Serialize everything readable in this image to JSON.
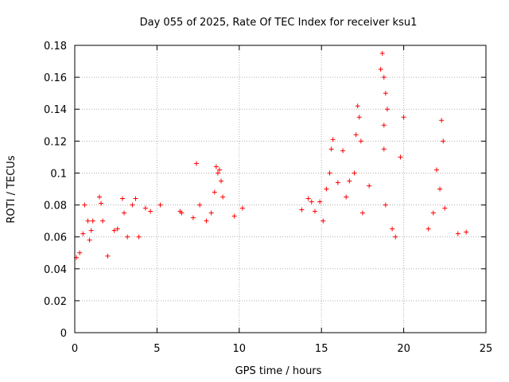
{
  "chart_data": {
    "type": "scatter",
    "title": "Day 055 of 2025, Rate Of TEC Index for receiver ksu1",
    "xlabel": "GPS time / hours",
    "ylabel": "ROTI / TECUs",
    "xlim": [
      0,
      25
    ],
    "ylim": [
      0,
      0.18
    ],
    "xticks": [
      0,
      5,
      10,
      15,
      20,
      25
    ],
    "xtick_labels": [
      "0",
      "5",
      "10",
      "15",
      "20",
      "25"
    ],
    "yticks": [
      0,
      0.02,
      0.04,
      0.06,
      0.08,
      0.1,
      0.12,
      0.14,
      0.16,
      0.18
    ],
    "ytick_labels": [
      "0",
      "0.02",
      "0.04",
      "0.06",
      "0.08",
      "0.1",
      "0.12",
      "0.14",
      "0.16",
      "0.18"
    ],
    "grid": true,
    "marker": "+",
    "color": "#ff0000",
    "series": [
      {
        "name": "ROTI",
        "points": [
          [
            0.1,
            0.047
          ],
          [
            0.3,
            0.05
          ],
          [
            0.5,
            0.062
          ],
          [
            0.6,
            0.08
          ],
          [
            0.8,
            0.07
          ],
          [
            0.9,
            0.058
          ],
          [
            1.0,
            0.064
          ],
          [
            1.1,
            0.07
          ],
          [
            1.5,
            0.085
          ],
          [
            1.6,
            0.081
          ],
          [
            1.7,
            0.07
          ],
          [
            2.0,
            0.048
          ],
          [
            2.4,
            0.064
          ],
          [
            2.6,
            0.065
          ],
          [
            2.9,
            0.084
          ],
          [
            3.0,
            0.075
          ],
          [
            3.2,
            0.06
          ],
          [
            3.5,
            0.08
          ],
          [
            3.7,
            0.084
          ],
          [
            3.9,
            0.06
          ],
          [
            4.3,
            0.078
          ],
          [
            4.6,
            0.076
          ],
          [
            5.2,
            0.08
          ],
          [
            6.4,
            0.076
          ],
          [
            6.5,
            0.075
          ],
          [
            7.2,
            0.072
          ],
          [
            7.4,
            0.106
          ],
          [
            7.6,
            0.08
          ],
          [
            8.0,
            0.07
          ],
          [
            8.3,
            0.075
          ],
          [
            8.5,
            0.088
          ],
          [
            8.6,
            0.104
          ],
          [
            8.7,
            0.1
          ],
          [
            8.8,
            0.102
          ],
          [
            8.9,
            0.095
          ],
          [
            9.0,
            0.085
          ],
          [
            9.7,
            0.073
          ],
          [
            10.2,
            0.078
          ],
          [
            13.8,
            0.077
          ],
          [
            14.2,
            0.084
          ],
          [
            14.4,
            0.082
          ],
          [
            14.6,
            0.076
          ],
          [
            14.9,
            0.082
          ],
          [
            15.1,
            0.07
          ],
          [
            15.3,
            0.09
          ],
          [
            15.5,
            0.1
          ],
          [
            15.6,
            0.115
          ],
          [
            15.7,
            0.121
          ],
          [
            16.0,
            0.094
          ],
          [
            16.3,
            0.114
          ],
          [
            16.5,
            0.085
          ],
          [
            16.7,
            0.095
          ],
          [
            17.0,
            0.1
          ],
          [
            17.1,
            0.124
          ],
          [
            17.2,
            0.142
          ],
          [
            17.3,
            0.135
          ],
          [
            17.4,
            0.12
          ],
          [
            17.5,
            0.075
          ],
          [
            17.9,
            0.092
          ],
          [
            18.6,
            0.165
          ],
          [
            18.7,
            0.175
          ],
          [
            18.8,
            0.16
          ],
          [
            18.9,
            0.15
          ],
          [
            19.0,
            0.14
          ],
          [
            18.8,
            0.13
          ],
          [
            18.8,
            0.115
          ],
          [
            18.9,
            0.08
          ],
          [
            19.3,
            0.065
          ],
          [
            19.5,
            0.06
          ],
          [
            19.8,
            0.11
          ],
          [
            20.0,
            0.135
          ],
          [
            21.5,
            0.065
          ],
          [
            21.8,
            0.075
          ],
          [
            22.0,
            0.102
          ],
          [
            22.2,
            0.09
          ],
          [
            22.3,
            0.133
          ],
          [
            22.4,
            0.12
          ],
          [
            22.5,
            0.078
          ],
          [
            23.3,
            0.062
          ],
          [
            23.8,
            0.063
          ]
        ]
      }
    ]
  }
}
